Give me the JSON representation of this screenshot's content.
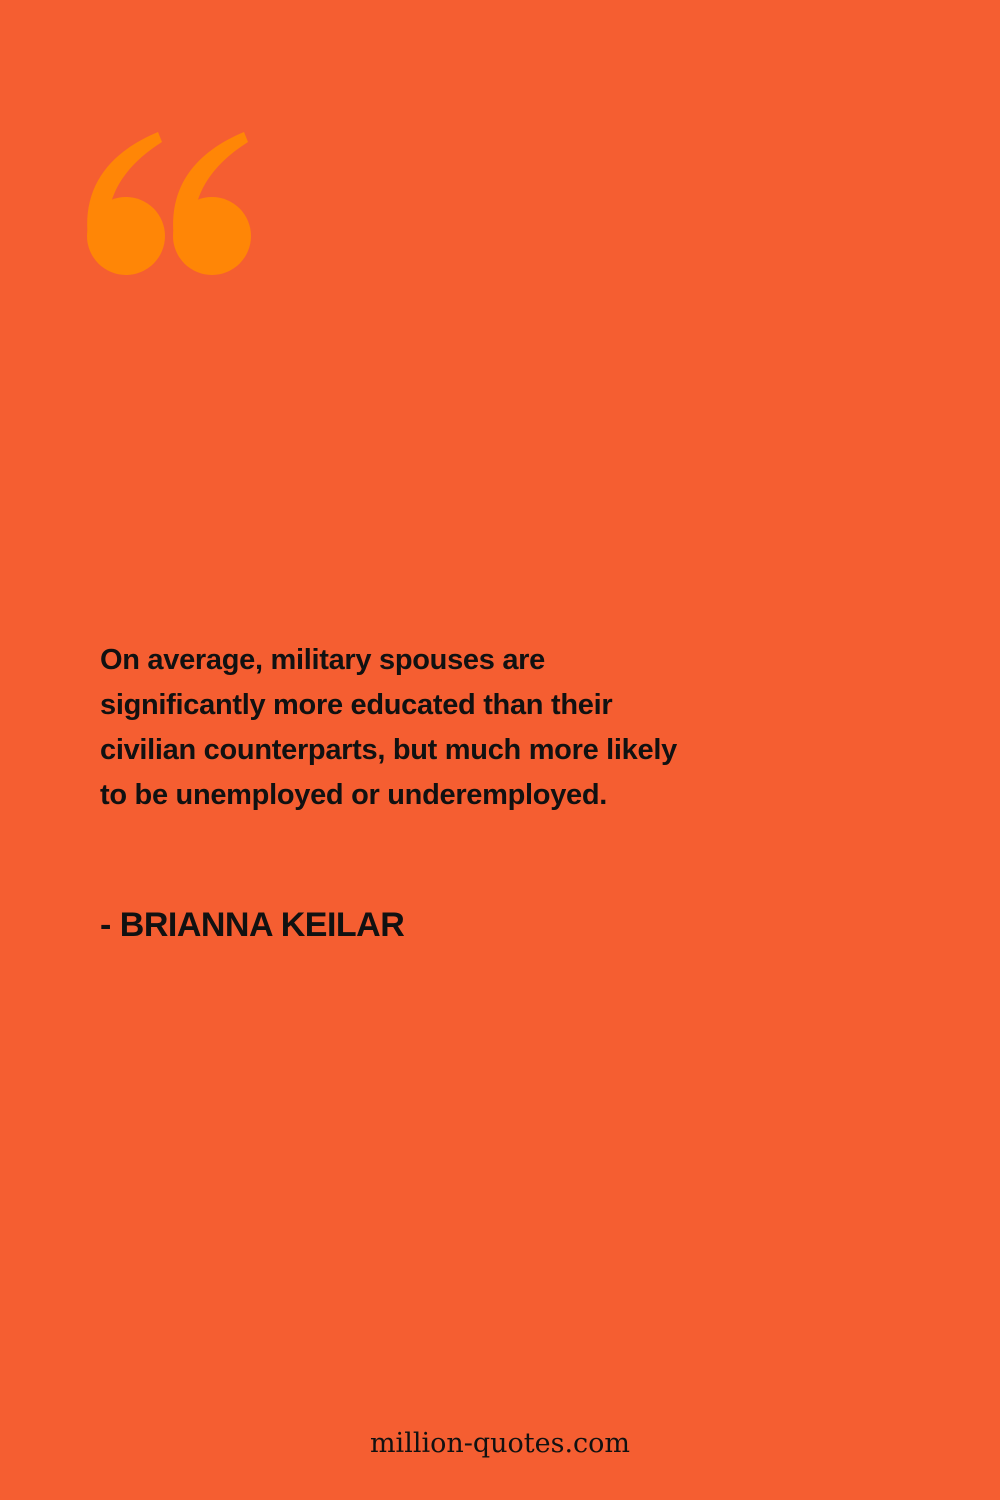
{
  "colors": {
    "background": "#f55e31",
    "quote_mark": "#ff8606",
    "text": "#111111"
  },
  "quote_icon": "opening-double-quote-icon",
  "quote": {
    "lines": [
      "On average, military spouses are",
      "significantly more educated than their",
      "civilian counterparts, but much more likely",
      "to be unemployed or underemployed."
    ]
  },
  "author": "- BRIANNA KEILAR",
  "site": "million-quotes.com"
}
